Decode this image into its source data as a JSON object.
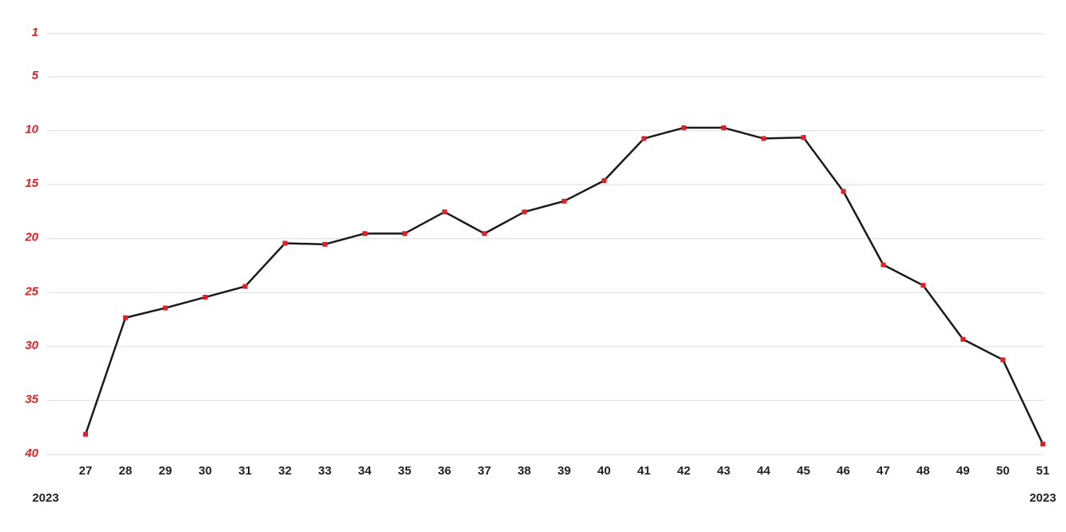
{
  "chart_data": {
    "type": "line",
    "categories": [
      "27",
      "28",
      "29",
      "30",
      "31",
      "32",
      "33",
      "34",
      "35",
      "36",
      "37",
      "38",
      "39",
      "40",
      "41",
      "42",
      "43",
      "44",
      "45",
      "46",
      "47",
      "48",
      "49",
      "50",
      "51"
    ],
    "series": [
      {
        "color": "#1a1a1a",
        "marker_color": "#e31e24",
        "values": [
          38.2,
          27.4,
          26.5,
          25.5,
          24.5,
          20.5,
          20.6,
          19.6,
          19.6,
          17.6,
          19.6,
          17.6,
          16.6,
          14.7,
          10.8,
          9.8,
          9.8,
          10.8,
          10.7,
          15.7,
          22.5,
          24.4,
          29.4,
          31.3,
          39.1
        ]
      }
    ],
    "ylim": [
      1,
      40
    ],
    "yticks": [
      1,
      5,
      10,
      15,
      20,
      25,
      30,
      35,
      40
    ],
    "y_inverted": true,
    "grid": true,
    "annotations": [
      "2023",
      "2023"
    ]
  }
}
